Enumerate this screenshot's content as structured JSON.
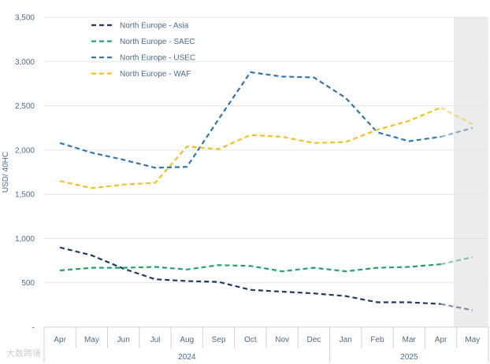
{
  "chart_data": {
    "type": "line",
    "title": "",
    "xlabel": "",
    "ylabel": "USD/ 40HC",
    "ylim": [
      0,
      3500
    ],
    "yticks": [
      0,
      500,
      1000,
      1500,
      2000,
      2500,
      3000,
      3500
    ],
    "ytick_labels": [
      "-",
      "500",
      "1,000",
      "1,500",
      "2,000",
      "2,500",
      "3,000",
      "3,500"
    ],
    "categories": [
      "Apr",
      "May",
      "Jun",
      "Jul",
      "Aug",
      "Sep",
      "Oct",
      "Nov",
      "Dec",
      "Jan",
      "Feb",
      "Mar",
      "Apr",
      "May"
    ],
    "year_groups": [
      {
        "label": "2024",
        "start": 0,
        "end": 8
      },
      {
        "label": "2025",
        "start": 9,
        "end": 13
      }
    ],
    "forecast_from_index": 12,
    "series": [
      {
        "name": "North Europe - Asia",
        "color": "#1f3864",
        "values": [
          900,
          810,
          660,
          540,
          520,
          510,
          420,
          400,
          380,
          350,
          280,
          280,
          260,
          190
        ]
      },
      {
        "name": "North Europe - SAEC",
        "color": "#21a366",
        "values": [
          640,
          670,
          670,
          680,
          650,
          700,
          690,
          630,
          670,
          630,
          670,
          680,
          710,
          790
        ]
      },
      {
        "name": "North Europe - USEC",
        "color": "#2e75b6",
        "values": [
          2080,
          1970,
          1890,
          1800,
          1810,
          2350,
          2880,
          2830,
          2820,
          2590,
          2200,
          2100,
          2150,
          2250
        ]
      },
      {
        "name": "North Europe - WAF",
        "color": "#f4c01e",
        "values": [
          1650,
          1570,
          1610,
          1630,
          2040,
          2010,
          2170,
          2150,
          2080,
          2090,
          2230,
          2330,
          2480,
          2290
        ]
      }
    ],
    "legend_position": "top-left",
    "grid": true
  },
  "watermark": "大数跨境"
}
